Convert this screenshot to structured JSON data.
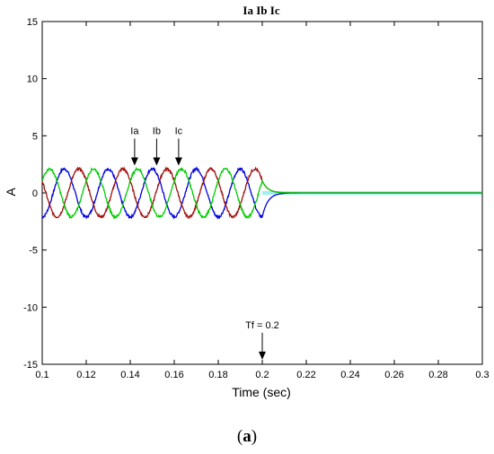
{
  "chart_data": {
    "type": "line",
    "title": "Ia Ib Ic",
    "xlabel": "Time (sec)",
    "ylabel": "A",
    "xlim": [
      0.1,
      0.3
    ],
    "ylim": [
      -15,
      15
    ],
    "x_ticks": [
      "0.1",
      "0.12",
      "0.14",
      "0.16",
      "0.18",
      "0.2",
      "0.22",
      "0.24",
      "0.26",
      "0.28",
      "0.3"
    ],
    "y_ticks": [
      "15",
      "10",
      "5",
      "0",
      "-5",
      "-10",
      "-15"
    ],
    "grid": false,
    "fault_time": 0.2,
    "frequency_hz": 50,
    "amplitude": 2.1,
    "series": [
      {
        "name": "Ia",
        "color": "#0000dd",
        "phase_deg": -90
      },
      {
        "name": "Ib",
        "color": "#a01010",
        "phase_deg": 150
      },
      {
        "name": "Ic",
        "color": "#00cc00",
        "phase_deg": 30
      }
    ],
    "annotations": [
      {
        "text": "Ia",
        "x": 0.142,
        "y": 2.4
      },
      {
        "text": "Ib",
        "x": 0.152,
        "y": 2.4
      },
      {
        "text": "Ic",
        "x": 0.162,
        "y": 2.4
      },
      {
        "text": "Tf = 0.2",
        "x": 0.2,
        "y": -14.6
      }
    ]
  },
  "caption": {
    "label": "a"
  }
}
